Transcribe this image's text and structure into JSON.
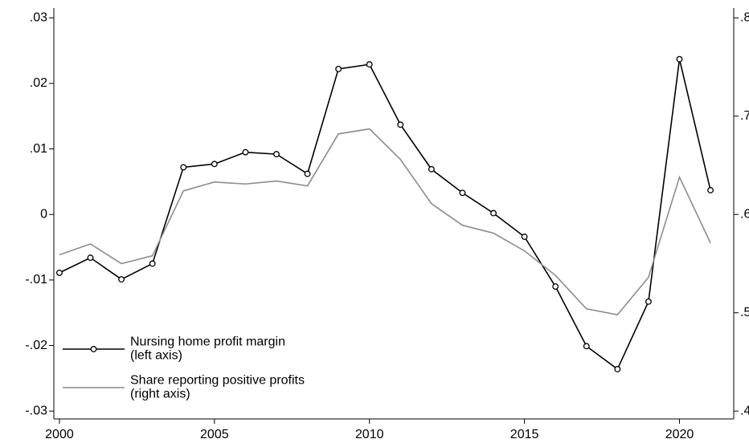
{
  "chart_data": {
    "type": "line",
    "x": [
      2000,
      2001,
      2002,
      2003,
      2004,
      2005,
      2006,
      2007,
      2008,
      2009,
      2010,
      2011,
      2012,
      2013,
      2014,
      2015,
      2016,
      2017,
      2018,
      2019,
      2020,
      2021
    ],
    "series": [
      {
        "name": "Nursing home profit margin\n(left axis)",
        "color": "#000000",
        "marker": "hollow-circle",
        "values": [
          -0.0089,
          -0.0066,
          -0.0099,
          -0.0075,
          0.0072,
          0.0077,
          0.0095,
          0.0092,
          0.0062,
          0.0222,
          0.0229,
          0.0137,
          0.0069,
          0.0033,
          0.0002,
          -0.0034,
          -0.011,
          -0.0201,
          -0.0236,
          -0.0133,
          0.0237,
          0.0037
        ]
      },
      {
        "name": "Share reporting positive profits\n(right axis)",
        "color": "#8c8c8c",
        "axis": "y2",
        "values": [
          0.559,
          0.57,
          0.55,
          0.558,
          0.624,
          0.633,
          0.631,
          0.634,
          0.629,
          0.682,
          0.687,
          0.656,
          0.611,
          0.589,
          0.581,
          0.563,
          0.538,
          0.504,
          0.498,
          0.536,
          0.638,
          0.571
        ]
      }
    ],
    "xlim": [
      1999.82,
      2021.75
    ],
    "xticks": [
      2000,
      2005,
      2010,
      2015,
      2020
    ],
    "ylim": [
      -0.0312,
      0.0315
    ],
    "yticks": [
      {
        "value": -0.03,
        "label": "-.03"
      },
      {
        "value": -0.02,
        "label": "-.02"
      },
      {
        "value": -0.01,
        "label": "-.01"
      },
      0,
      {
        "value": 0.01,
        "label": ".01"
      },
      {
        "value": 0.02,
        "label": ".02"
      },
      {
        "value": 0.03,
        "label": ".03"
      }
    ],
    "y2lim": [
      0.392,
      0.81
    ],
    "y2ticks": [
      {
        "value": 0.4,
        "label": ".4"
      },
      {
        "value": 0.5,
        "label": ".5"
      },
      {
        "value": 0.6,
        "label": ".6"
      },
      {
        "value": 0.7,
        "label": ".7"
      },
      {
        "value": 0.8,
        "label": ".8"
      }
    ],
    "legend": "lower-left",
    "grid": false
  }
}
